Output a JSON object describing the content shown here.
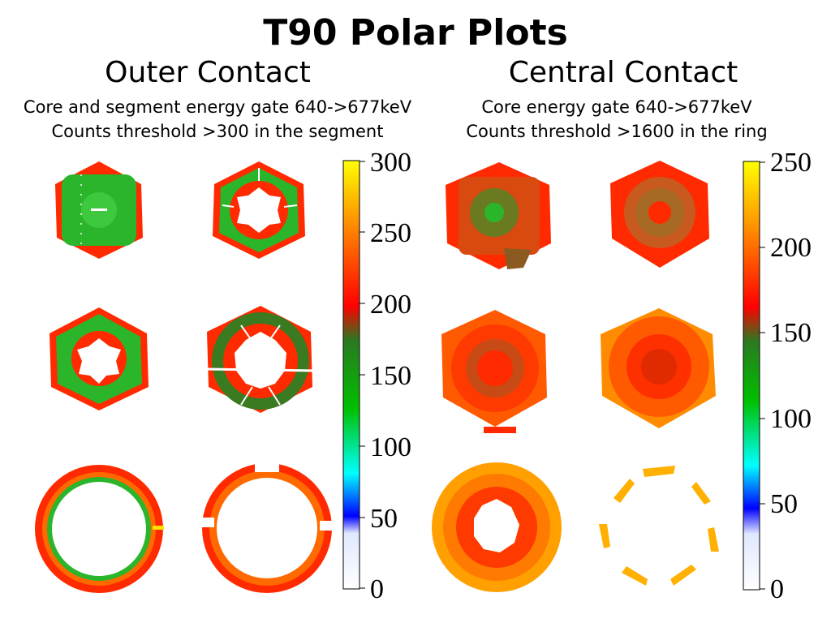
{
  "slide": {
    "title": "T90 Polar Plots"
  },
  "left": {
    "heading": "Outer Contact",
    "line1": "Core and segment energy gate 640->677keV",
    "line2": "Counts threshold >300 in the segment",
    "colorbar": {
      "ticks": [
        "300",
        "250",
        "200",
        "150",
        "100",
        "50",
        "0"
      ]
    }
  },
  "right": {
    "heading": "Central Contact",
    "line1": "Core energy gate 640->677keV",
    "line2": "Counts threshold >1600 in the ring",
    "colorbar": {
      "ticks": [
        "250",
        "200",
        "150",
        "100",
        "50",
        "0"
      ]
    }
  },
  "colors": {
    "red": "#ff2a00",
    "green": "#2bb52b",
    "dark_green": "#3a7a20",
    "orange": "#ff8c00",
    "yellow": "#ffe000",
    "white": "#ffffff"
  }
}
